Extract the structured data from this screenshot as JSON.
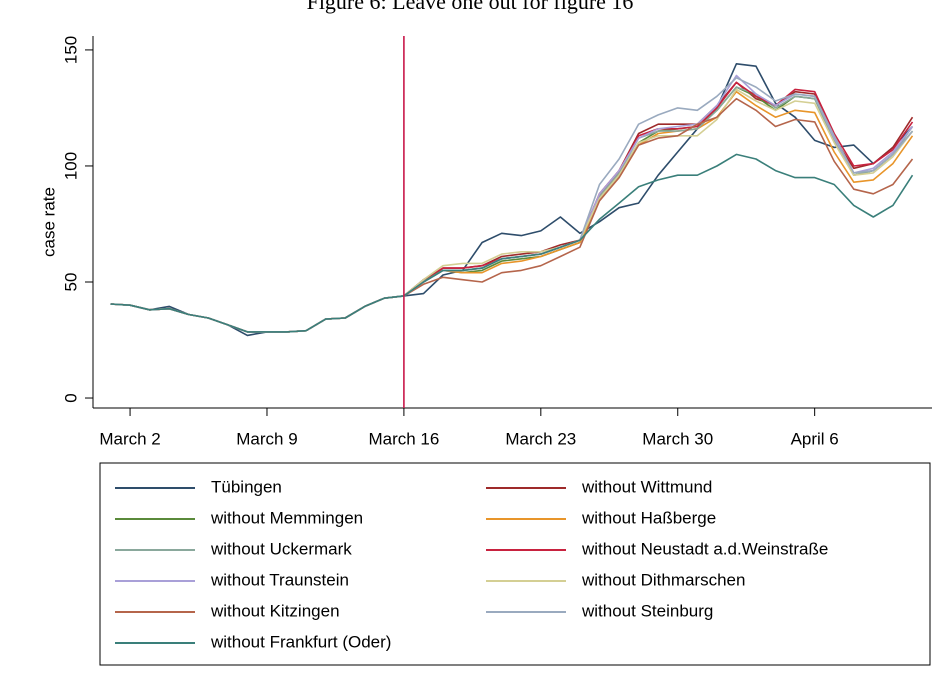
{
  "chart_data": {
    "type": "line",
    "title": "Figure 6: Leave one out for figure 16",
    "y_label": "case rate",
    "categories": [
      null,
      "March 2",
      null,
      null,
      null,
      null,
      null,
      null,
      "March 9",
      null,
      null,
      null,
      null,
      null,
      null,
      "March 16",
      null,
      null,
      null,
      null,
      null,
      null,
      "March 23",
      null,
      null,
      null,
      null,
      null,
      null,
      "March 30",
      null,
      null,
      null,
      null,
      null,
      null,
      "April 6",
      null,
      null,
      null,
      null,
      null
    ],
    "ylim": [
      -4.3,
      156
    ],
    "yticks": [
      0,
      50,
      100,
      150
    ],
    "vline": {
      "category": "March 16",
      "color": "#c8184a"
    },
    "series": [
      {
        "name": "Tübingen",
        "color": "#2e4d6b",
        "values": [
          40.5,
          40,
          38,
          39.5,
          36,
          34.5,
          31.5,
          27,
          28.5,
          28.5,
          29,
          34,
          34.5,
          39.5,
          43,
          44,
          45,
          53,
          55,
          67,
          71,
          70,
          72,
          78,
          71,
          76,
          82,
          84,
          96,
          106,
          116,
          125,
          144,
          143,
          127,
          121,
          111,
          108,
          109,
          101,
          108,
          117
        ]
      },
      {
        "name": "without Wittmund",
        "color": "#9e2a2a",
        "values": [
          40.5,
          40,
          38,
          38.5,
          36,
          34.5,
          31.5,
          28.5,
          28.5,
          28.5,
          29,
          34,
          34.5,
          39.5,
          43,
          44,
          50,
          56,
          56,
          57,
          61,
          62,
          63,
          66,
          68,
          88,
          98,
          114,
          118,
          118,
          118,
          126,
          136,
          129,
          126,
          132,
          131,
          112,
          99,
          101,
          108,
          121
        ]
      },
      {
        "name": "without Memmingen",
        "color": "#5a8a3a",
        "values": [
          40.5,
          40,
          38,
          38.5,
          36,
          34.5,
          31.5,
          28.5,
          28.5,
          28.5,
          29,
          34,
          34.5,
          39.5,
          43,
          44,
          51,
          55,
          54,
          55,
          59,
          60,
          61,
          64,
          67,
          86,
          96,
          110,
          115,
          116,
          117,
          124,
          134,
          130,
          124,
          130,
          129,
          111,
          96,
          98,
          105,
          115
        ]
      },
      {
        "name": "without Haßberge",
        "color": "#e8952a",
        "values": [
          40.5,
          40,
          38,
          38.5,
          36,
          34.5,
          31.5,
          28.5,
          28.5,
          28.5,
          29,
          34,
          34.5,
          39.5,
          43,
          44,
          50,
          55,
          54,
          54,
          58,
          59,
          61,
          64,
          67,
          86,
          95,
          109,
          114,
          115,
          116,
          121,
          132,
          126,
          121,
          124,
          123,
          106,
          93,
          94,
          101,
          113
        ]
      },
      {
        "name": "without Uckermark",
        "color": "#8aa89c",
        "values": [
          40.5,
          40,
          38,
          38.5,
          36,
          34.5,
          31.5,
          28.5,
          28.5,
          28.5,
          29,
          34,
          34.5,
          39.5,
          43,
          44,
          50,
          55,
          55,
          56,
          60,
          61,
          62,
          65,
          68,
          87,
          97,
          112,
          115,
          115,
          116,
          124,
          134,
          131,
          125,
          130,
          129,
          111,
          96,
          98,
          105,
          117
        ]
      },
      {
        "name": "without Neustadt a.d.Weinstraße",
        "color": "#c8223f",
        "values": [
          40.5,
          40,
          38,
          38.5,
          36,
          34.5,
          31.5,
          28.5,
          28.5,
          28.5,
          29,
          34,
          34.5,
          39.5,
          43,
          44,
          51,
          56,
          56,
          57,
          60,
          61,
          62,
          65,
          68,
          88,
          98,
          113,
          116,
          116,
          117,
          125,
          136,
          130,
          126,
          133,
          132,
          114,
          100,
          101,
          107,
          119
        ]
      },
      {
        "name": "without Traunstein",
        "color": "#a9a0d8",
        "values": [
          40.5,
          40,
          38,
          38.5,
          36,
          34.5,
          31.5,
          28.5,
          28.5,
          28.5,
          29,
          34,
          34.5,
          39.5,
          43,
          44,
          50,
          55,
          55,
          56,
          60,
          61,
          62,
          65,
          68,
          88,
          98,
          112,
          116,
          117,
          118,
          126,
          139,
          131,
          126,
          131,
          130,
          112,
          97,
          99,
          106,
          117
        ]
      },
      {
        "name": "without Dithmarschen",
        "color": "#d4cf94",
        "values": [
          40.5,
          40,
          38,
          38.5,
          36,
          34.5,
          31.5,
          28.5,
          28.5,
          28.5,
          29,
          34,
          34.5,
          39.5,
          43,
          44,
          51,
          57,
          58,
          58,
          62,
          63,
          63,
          65,
          68,
          86,
          96,
          110,
          113,
          113,
          113,
          120,
          133,
          128,
          124,
          128,
          127,
          110,
          96,
          97,
          104,
          115
        ]
      },
      {
        "name": "without Kitzingen",
        "color": "#b5654b",
        "values": [
          40.5,
          40,
          38,
          38.5,
          36,
          34.5,
          31.5,
          28.5,
          28.5,
          28.5,
          29,
          34,
          34.5,
          39.5,
          43,
          44,
          49,
          52,
          51,
          50,
          54,
          55,
          57,
          61,
          65,
          85,
          95,
          109,
          112,
          113,
          118,
          121,
          129,
          124,
          117,
          120,
          119,
          102,
          90,
          88,
          92,
          103
        ]
      },
      {
        "name": "without Steinburg",
        "color": "#9aaabf",
        "values": [
          40.5,
          40,
          38,
          38.5,
          36,
          34.5,
          31.5,
          28.5,
          28.5,
          28.5,
          29,
          34,
          34.5,
          39.5,
          43,
          44,
          50,
          55,
          55,
          56,
          60,
          61,
          62,
          65,
          68,
          92,
          103,
          118,
          122,
          125,
          124,
          130,
          138,
          134,
          128,
          131,
          130,
          113,
          97,
          98,
          105,
          115
        ]
      },
      {
        "name": "without Frankfurt (Oder)",
        "color": "#3a7f7a",
        "values": [
          40.5,
          40,
          38,
          38.5,
          36,
          34.5,
          31.5,
          28.5,
          28.5,
          28.5,
          29,
          34,
          34.5,
          39.5,
          43,
          44,
          50,
          55,
          55,
          56,
          60,
          61,
          62,
          65,
          68,
          77,
          84,
          91,
          94,
          96,
          96,
          100,
          105,
          103,
          98,
          95,
          95,
          92,
          83,
          78,
          83,
          96
        ]
      }
    ]
  }
}
